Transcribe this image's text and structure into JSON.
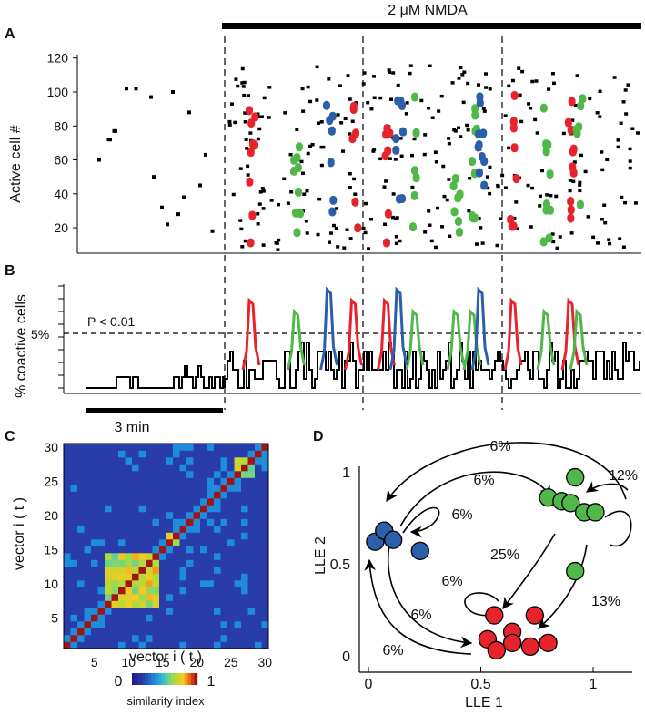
{
  "labels": {
    "A": "A",
    "B": "B",
    "C": "C",
    "D": "D"
  },
  "nmda": {
    "text": "2 μM NMDA"
  },
  "panelA": {
    "ylabel": "Active cell #",
    "yticks": [
      "20",
      "40",
      "60",
      "80",
      "100",
      "120"
    ],
    "ytick_values": [
      20,
      40,
      60,
      80,
      100,
      120
    ],
    "ylim": [
      5,
      122
    ]
  },
  "panelB": {
    "ylabel": "% coactive cells",
    "five_label": "5%",
    "threshold_label": "P < 0.01",
    "scalebar_label": "3 min"
  },
  "panelC": {
    "xlabel": "vector i ( t )",
    "ylabel": "vector i ( t )",
    "xticks": [
      "5",
      "10",
      "15",
      "20",
      "25",
      "30"
    ],
    "yticks": [
      "5",
      "10",
      "15",
      "20",
      "25",
      "30"
    ],
    "colorbar_min": "0",
    "colorbar_max": "1",
    "colorbar_label": "similarity index"
  },
  "panelD": {
    "xlabel": "LLE 1",
    "ylabel": "LLE 2",
    "xticks": [
      "0",
      "0.5",
      "1"
    ],
    "yticks": [
      "0",
      "0.5",
      "1"
    ],
    "transitions": {
      "top_outer": "6%",
      "top_inner": "6%",
      "blue_self": "6%",
      "green_self": "12%",
      "green_to_red": "25%",
      "red_self": "6%",
      "blue_to_red": "6%",
      "red_to_blue": "6%",
      "red_to_green": "13%"
    }
  },
  "colors": {
    "red": "#e8232b",
    "green": "#4fb848",
    "blue": "#2c5faa",
    "black": "#111111",
    "cyan": "#3399d6"
  },
  "chart_data": [
    {
      "type": "scatter",
      "title": "A",
      "ylabel": "Active cell #",
      "ylim": [
        5,
        122
      ],
      "series": [
        {
          "name": "baseline",
          "color": "black",
          "points": [
            [
              0.08,
              60
            ],
            [
              0.15,
              72
            ],
            [
              0.16,
              72
            ],
            [
              0.19,
              77
            ],
            [
              0.2,
              77
            ],
            [
              0.28,
              102
            ],
            [
              0.35,
              102
            ],
            [
              0.46,
              97
            ],
            [
              0.48,
              50
            ],
            [
              0.54,
              32
            ],
            [
              0.58,
              22
            ],
            [
              0.62,
              100
            ],
            [
              0.66,
              28
            ],
            [
              0.7,
              38
            ],
            [
              0.74,
              88
            ],
            [
              0.82,
              45
            ],
            [
              0.86,
              63
            ],
            [
              0.91,
              18
            ]
          ]
        },
        {
          "name": "red ensemble",
          "color": "red",
          "x": [
            0.06,
            0.31,
            0.39,
            0.7,
            0.84
          ],
          "ymin": 8,
          "ymax": 98
        },
        {
          "name": "green ensemble",
          "color": "green",
          "x": [
            0.17,
            0.46,
            0.56,
            0.6,
            0.78,
            0.86
          ],
          "ymin": 8,
          "ymax": 102
        },
        {
          "name": "blue ensemble",
          "color": "blue",
          "x": [
            0.25,
            0.42,
            0.62
          ],
          "ymin": 28,
          "ymax": 100
        }
      ]
    },
    {
      "type": "line",
      "title": "B",
      "ylabel": "% coactive cells",
      "threshold": 5,
      "ylim": [
        0,
        10
      ],
      "series": [
        {
          "name": "baseline",
          "color": "black",
          "x": [
            0.0,
            0.1,
            0.11,
            0.15,
            0.16,
            0.17,
            0.18,
            0.19,
            0.2,
            0.3,
            0.31,
            0.32,
            0.33,
            0.34,
            0.35,
            0.36,
            0.37,
            0.38,
            0.39,
            0.4,
            0.41,
            0.42,
            0.43,
            0.44,
            0.45,
            0.46,
            0.47,
            0.48,
            0.49,
            0.5
          ],
          "values": [
            0,
            0,
            1,
            1,
            0,
            1,
            1,
            0,
            0,
            0,
            0,
            1,
            1,
            0,
            1,
            2,
            1,
            1,
            0,
            1,
            2,
            1,
            0,
            0,
            1,
            0,
            1,
            1,
            0,
            1
          ]
        },
        {
          "name": "nmda",
          "color": "black",
          "x_start": 0.5,
          "x_end": 1.0
        },
        {
          "name": "red peaks",
          "color": "red",
          "x": [
            0.06,
            0.31,
            0.39,
            0.7,
            0.84
          ],
          "peak": 8
        },
        {
          "name": "green peaks",
          "color": "green",
          "x": [
            0.17,
            0.46,
            0.56,
            0.6,
            0.78,
            0.86
          ],
          "peak": 7
        },
        {
          "name": "blue peaks",
          "color": "blue",
          "x": [
            0.25,
            0.42,
            0.62
          ],
          "peak": 9
        }
      ]
    },
    {
      "type": "heatmap",
      "title": "C",
      "xlabel": "vector i ( t )",
      "ylabel": "vector i ( t )",
      "size": 30,
      "blocks": [
        {
          "from": 6,
          "to": 13,
          "value": 0.55
        },
        {
          "from": 15,
          "to": 16,
          "value": 0.6
        },
        {
          "from": 25,
          "to": 27,
          "value": 0.55
        }
      ],
      "diagonal": 1,
      "background": 0.15
    },
    {
      "type": "scatter",
      "title": "D",
      "xlabel": "LLE 1",
      "ylabel": "LLE 2",
      "xlim": [
        -0.05,
        1.15
      ],
      "ylim": [
        -0.05,
        1.1
      ],
      "series": [
        {
          "name": "blue cluster",
          "color": "blue",
          "points": [
            [
              0.03,
              0.62
            ],
            [
              0.07,
              0.68
            ],
            [
              0.11,
              0.63
            ],
            [
              0.23,
              0.57
            ]
          ]
        },
        {
          "name": "green cluster",
          "color": "green",
          "points": [
            [
              0.92,
              0.97
            ],
            [
              0.8,
              0.86
            ],
            [
              0.86,
              0.84
            ],
            [
              0.9,
              0.83
            ],
            [
              0.96,
              0.78
            ],
            [
              1.01,
              0.78
            ],
            [
              0.92,
              0.46
            ]
          ]
        },
        {
          "name": "red cluster",
          "color": "red",
          "points": [
            [
              0.56,
              0.22
            ],
            [
              0.74,
              0.22
            ],
            [
              0.64,
              0.13
            ],
            [
              0.53,
              0.09
            ],
            [
              0.64,
              0.07
            ],
            [
              0.72,
              0.05
            ],
            [
              0.57,
              0.03
            ],
            [
              0.8,
              0.07
            ]
          ]
        }
      ]
    }
  ]
}
